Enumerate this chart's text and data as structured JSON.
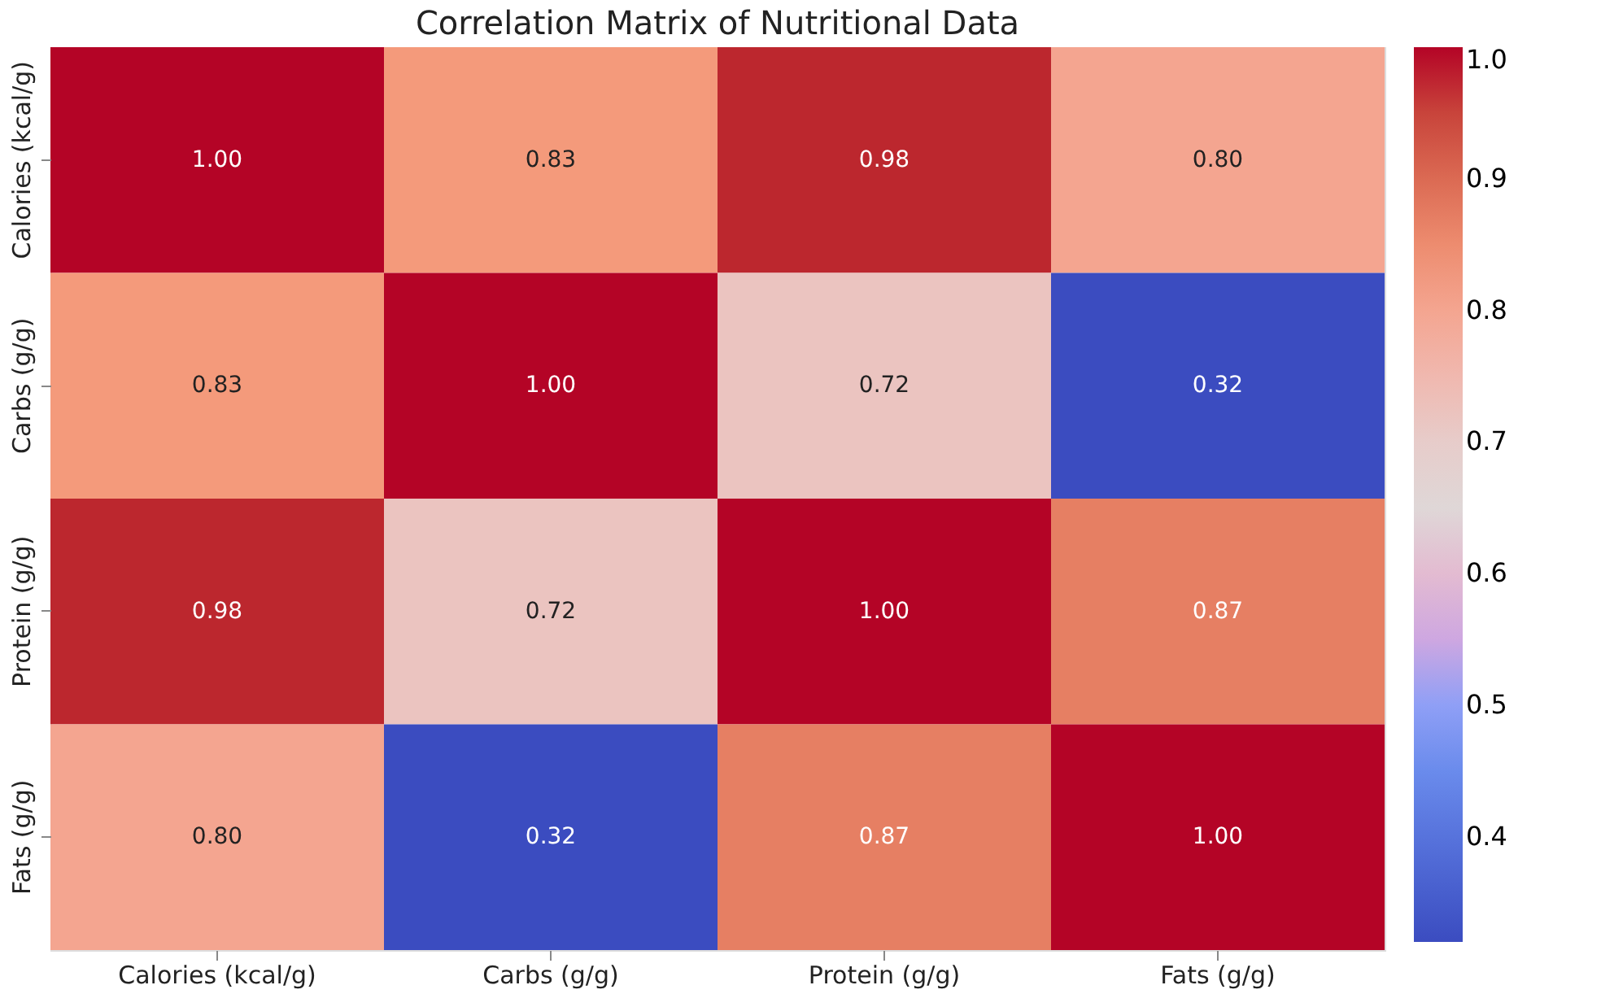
{
  "chart_data": {
    "type": "heatmap",
    "title": "Correlation Matrix of Nutritional Data",
    "categories": [
      "Calories (kcal/g)",
      "Carbs (g/g)",
      "Protein (g/g)",
      "Fats (g/g)"
    ],
    "y_categories": [
      "Calories (kcal/g)",
      "Carbs (g/g)",
      "Protein (g/g)",
      "Fats (g/g)"
    ],
    "cells": [
      [
        1.0,
        0.83,
        0.98,
        0.8
      ],
      [
        0.83,
        1.0,
        0.72,
        0.32
      ],
      [
        0.98,
        0.72,
        1.0,
        0.87
      ],
      [
        0.8,
        0.32,
        0.87,
        1.0
      ]
    ],
    "cell_labels": [
      [
        "1.00",
        "0.83",
        "0.98",
        "0.80"
      ],
      [
        "0.83",
        "1.00",
        "0.72",
        "0.32"
      ],
      [
        "0.98",
        "0.72",
        "1.00",
        "0.87"
      ],
      [
        "0.80",
        "0.32",
        "0.87",
        "1.00"
      ]
    ],
    "clim": [
      0.32,
      1.0
    ],
    "cticks": [
      0.4,
      0.5,
      0.6,
      0.7,
      0.8,
      0.9,
      {
        "value": 1.0,
        "label": "1.0"
      }
    ]
  }
}
